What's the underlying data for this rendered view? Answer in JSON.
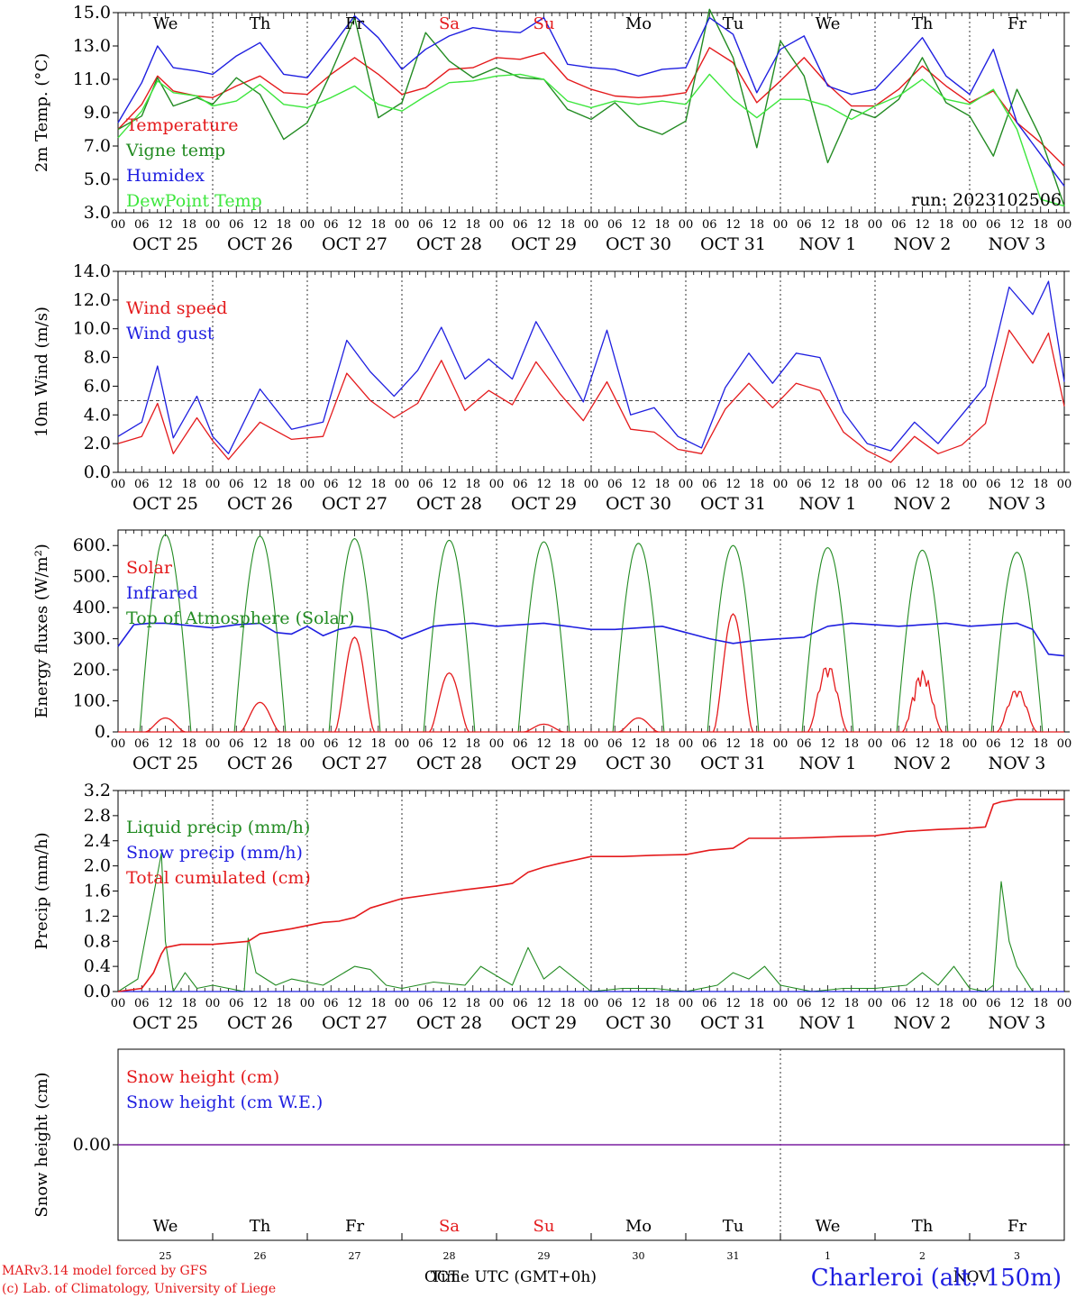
{
  "colors": {
    "red": "#e41a1c",
    "green": "#228b22",
    "blue": "#1f1fe0",
    "lightgreen": "#3de63d",
    "purple": "#7a1fa0"
  },
  "x_hour_labels": [
    "00",
    "06",
    "12",
    "18"
  ],
  "x_date_labels": [
    "OCT 25",
    "OCT 26",
    "OCT 27",
    "OCT 28",
    "OCT 29",
    "OCT 30",
    "OCT 31",
    "NOV 1",
    "NOV 2",
    "NOV 3"
  ],
  "weekdays": [
    "We",
    "Th",
    "Fr",
    "Sa",
    "Su",
    "Mo",
    "Tu",
    "We",
    "Th",
    "Fr"
  ],
  "weekend_days": [
    "Sa",
    "Su"
  ],
  "bottom_day_numbers": [
    "25",
    "26",
    "27",
    "28",
    "29",
    "30",
    "31",
    "1",
    "2",
    "3"
  ],
  "bottom_months": [
    "OCT",
    "NOV"
  ],
  "xaxis_title": "Time UTC (GMT+0h)",
  "footer": {
    "line1": "MARv3.14 model forced by GFS",
    "line2": "(c) Lab. of Climatology, University of Liege"
  },
  "station": "Charleroi (alt. 150m)",
  "run_label": "run: 2023102506",
  "chart_data": [
    {
      "type": "line",
      "ylabel": "2m Temp. (°C)",
      "ylim": [
        3.0,
        15.0
      ],
      "yticks": [
        "3.0",
        "5.0",
        "7.0",
        "9.0",
        "11.0",
        "13.0",
        "15.0"
      ],
      "x_unit": "hours since OCT 25 00 UTC",
      "series": [
        {
          "name": "Temperature",
          "color": "red",
          "x": [
            0,
            6,
            10,
            14,
            20,
            24,
            30,
            36,
            42,
            48,
            54,
            60,
            66,
            72,
            78,
            84,
            90,
            96,
            102,
            108,
            114,
            120,
            126,
            132,
            138,
            144,
            150,
            156,
            162,
            168,
            174,
            180,
            186,
            192,
            198,
            204,
            210,
            216,
            222,
            228,
            234,
            240
          ],
          "values": [
            8.0,
            9.5,
            11.2,
            10.3,
            10.0,
            9.9,
            10.6,
            11.2,
            10.2,
            10.1,
            11.3,
            12.3,
            11.3,
            10.1,
            10.5,
            11.6,
            11.7,
            12.3,
            12.2,
            12.6,
            11.0,
            10.4,
            10.0,
            9.9,
            10.0,
            10.2,
            12.9,
            12.0,
            9.6,
            10.9,
            12.3,
            10.7,
            9.4,
            9.4,
            10.4,
            11.8,
            10.6,
            9.6,
            10.3,
            8.4,
            7.2,
            5.8
          ]
        },
        {
          "name": "Vigne temp",
          "color": "green",
          "x": [
            0,
            6,
            10,
            14,
            20,
            24,
            30,
            36,
            42,
            48,
            54,
            60,
            66,
            72,
            78,
            84,
            90,
            96,
            102,
            108,
            114,
            120,
            126,
            132,
            138,
            144,
            150,
            156,
            162,
            168,
            174,
            180,
            186,
            192,
            198,
            204,
            210,
            216,
            222,
            228,
            234,
            240
          ],
          "values": [
            8.0,
            8.8,
            11.1,
            9.4,
            9.9,
            9.5,
            11.1,
            10.1,
            7.4,
            8.4,
            11.4,
            14.7,
            8.7,
            9.6,
            13.8,
            12.1,
            11.1,
            11.7,
            11.1,
            11.0,
            9.2,
            8.6,
            9.6,
            8.2,
            7.7,
            8.5,
            15.2,
            12.3,
            6.9,
            13.3,
            11.2,
            6.0,
            9.2,
            8.7,
            9.8,
            12.3,
            9.6,
            8.8,
            6.4,
            10.4,
            7.5,
            3.4
          ]
        },
        {
          "name": "Humidex",
          "color": "blue",
          "x": [
            0,
            6,
            10,
            14,
            20,
            24,
            30,
            36,
            42,
            48,
            54,
            60,
            66,
            72,
            78,
            84,
            90,
            96,
            102,
            108,
            114,
            120,
            126,
            132,
            138,
            144,
            150,
            156,
            162,
            168,
            174,
            180,
            186,
            192,
            198,
            204,
            210,
            216,
            222,
            228,
            234,
            240
          ],
          "values": [
            8.4,
            10.8,
            13.0,
            11.7,
            11.5,
            11.3,
            12.4,
            13.2,
            11.3,
            11.1,
            12.9,
            14.8,
            13.5,
            11.6,
            12.8,
            13.6,
            14.1,
            13.9,
            13.8,
            14.7,
            11.9,
            11.7,
            11.6,
            11.2,
            11.6,
            11.7,
            14.7,
            13.7,
            10.2,
            12.8,
            13.6,
            10.6,
            10.1,
            10.4,
            11.9,
            13.5,
            11.2,
            10.1,
            12.8,
            8.4,
            6.5,
            4.6
          ]
        },
        {
          "name": "DewPoint Temp",
          "color": "lightgreen",
          "x": [
            0,
            6,
            10,
            14,
            20,
            24,
            30,
            36,
            42,
            48,
            54,
            60,
            66,
            72,
            78,
            84,
            90,
            96,
            102,
            108,
            114,
            120,
            126,
            132,
            138,
            144,
            150,
            156,
            162,
            168,
            174,
            180,
            186,
            192,
            198,
            204,
            210,
            216,
            222,
            228,
            234,
            240
          ],
          "values": [
            7.5,
            9.1,
            10.9,
            10.2,
            10.0,
            9.4,
            9.7,
            10.7,
            9.5,
            9.3,
            9.9,
            10.6,
            9.5,
            9.1,
            10.0,
            10.8,
            10.9,
            11.2,
            11.3,
            11.0,
            9.7,
            9.3,
            9.7,
            9.5,
            9.7,
            9.5,
            11.3,
            9.8,
            8.7,
            9.8,
            9.8,
            9.4,
            8.6,
            9.4,
            10.0,
            11.0,
            9.8,
            9.5,
            10.4,
            8.0,
            3.8,
            3.4
          ]
        }
      ]
    },
    {
      "type": "line",
      "ylabel": "10m Wind (m/s)",
      "ylim": [
        0.0,
        14.0
      ],
      "yticks": [
        "0.0",
        "2.0",
        "4.0",
        "6.0",
        "8.0",
        "10.0",
        "12.0",
        "14.0"
      ],
      "reference_line": 5.0,
      "x_unit": "hours since OCT 25 00 UTC",
      "series": [
        {
          "name": "Wind speed",
          "color": "red",
          "x": [
            0,
            6,
            10,
            14,
            20,
            24,
            28,
            36,
            44,
            52,
            58,
            64,
            70,
            76,
            82,
            88,
            94,
            100,
            106,
            112,
            118,
            124,
            130,
            136,
            142,
            148,
            154,
            160,
            166,
            172,
            178,
            184,
            190,
            196,
            202,
            208,
            214,
            220,
            226,
            232,
            236,
            240
          ],
          "values": [
            2.0,
            2.5,
            4.8,
            1.3,
            3.8,
            2.2,
            0.9,
            3.5,
            2.3,
            2.5,
            6.9,
            5.0,
            3.8,
            4.8,
            7.8,
            4.3,
            5.7,
            4.7,
            7.7,
            5.5,
            3.6,
            6.3,
            3.0,
            2.8,
            1.6,
            1.3,
            4.4,
            6.2,
            4.5,
            6.2,
            5.7,
            2.8,
            1.5,
            0.7,
            2.5,
            1.3,
            1.9,
            3.4,
            9.9,
            7.6,
            9.7,
            4.6
          ]
        },
        {
          "name": "Wind gust",
          "color": "blue",
          "x": [
            0,
            6,
            10,
            14,
            20,
            24,
            28,
            36,
            44,
            52,
            58,
            64,
            70,
            76,
            82,
            88,
            94,
            100,
            106,
            112,
            118,
            124,
            130,
            136,
            142,
            148,
            154,
            160,
            166,
            172,
            178,
            184,
            190,
            196,
            202,
            208,
            214,
            220,
            226,
            232,
            236,
            240
          ],
          "values": [
            2.5,
            3.5,
            7.4,
            2.4,
            5.3,
            2.5,
            1.3,
            5.8,
            3.0,
            3.5,
            9.2,
            7.0,
            5.3,
            7.1,
            10.1,
            6.5,
            7.9,
            6.5,
            10.5,
            7.7,
            4.9,
            9.9,
            4.0,
            4.5,
            2.5,
            1.7,
            5.9,
            8.3,
            6.2,
            8.3,
            8.0,
            4.2,
            2.0,
            1.5,
            3.5,
            2.0,
            4.0,
            6.0,
            12.9,
            11.0,
            13.3,
            6.3
          ]
        }
      ]
    },
    {
      "type": "line",
      "ylabel": "Energy fluxes (W/m²)",
      "ylim": [
        0,
        650
      ],
      "yticks": [
        "0.",
        "100.",
        "200.",
        "300.",
        "400.",
        "500.",
        "600."
      ],
      "x_unit": "hours since OCT 25 00 UTC",
      "toa_peaks": [
        635,
        630,
        622,
        617,
        612,
        607,
        600,
        593,
        585,
        578
      ],
      "series": [
        {
          "name": "Solar",
          "color": "red",
          "day_peaks": [
            45,
            95,
            305,
            190,
            25,
            45,
            380,
            220,
            200,
            140
          ]
        },
        {
          "name": "Infrared",
          "color": "blue",
          "x": [
            0,
            4,
            8,
            12,
            16,
            20,
            24,
            30,
            36,
            40,
            44,
            48,
            52,
            56,
            60,
            64,
            68,
            72,
            76,
            80,
            84,
            90,
            96,
            102,
            108,
            114,
            120,
            126,
            132,
            138,
            144,
            150,
            156,
            162,
            168,
            174,
            180,
            186,
            192,
            198,
            204,
            210,
            216,
            222,
            228,
            232,
            236,
            240
          ],
          "values": [
            275,
            345,
            350,
            350,
            345,
            340,
            335,
            345,
            350,
            320,
            315,
            340,
            310,
            330,
            340,
            335,
            325,
            300,
            320,
            340,
            345,
            350,
            340,
            345,
            350,
            340,
            330,
            330,
            335,
            340,
            320,
            300,
            285,
            295,
            300,
            305,
            340,
            350,
            345,
            340,
            345,
            350,
            340,
            345,
            350,
            330,
            250,
            245
          ]
        },
        {
          "name": "Top of Atmosphere (Solar)",
          "color": "green"
        }
      ]
    },
    {
      "type": "line",
      "ylabel": "Precip (mm/h)",
      "ylim": [
        0.0,
        3.2
      ],
      "yticks": [
        "0.0",
        "0.4",
        "0.8",
        "1.2",
        "1.6",
        "2.0",
        "2.4",
        "2.8",
        "3.2"
      ],
      "x_unit": "hours since OCT 25 00 UTC",
      "series": [
        {
          "name": "Liquid precip (mm/h)",
          "color": "green",
          "x": [
            0,
            5,
            8,
            11,
            12,
            14,
            17,
            20,
            24,
            32,
            33,
            35,
            40,
            44,
            52,
            60,
            64,
            68,
            72,
            80,
            88,
            92,
            100,
            104,
            108,
            112,
            120,
            128,
            136,
            144,
            152,
            156,
            160,
            164,
            168,
            176,
            184,
            192,
            200,
            204,
            208,
            212,
            216,
            220,
            222,
            224,
            226,
            228,
            232,
            240
          ],
          "values": [
            0,
            0.2,
            1.2,
            2.2,
            0.8,
            0,
            0.3,
            0.05,
            0.1,
            0,
            0.85,
            0.3,
            0.1,
            0.2,
            0.1,
            0.4,
            0.35,
            0.1,
            0.05,
            0.15,
            0.1,
            0.4,
            0.1,
            0.7,
            0.2,
            0.4,
            0,
            0.05,
            0.05,
            0,
            0.1,
            0.3,
            0.2,
            0.4,
            0.1,
            0,
            0.05,
            0.05,
            0.1,
            0.3,
            0.1,
            0.4,
            0.05,
            0,
            0.1,
            1.75,
            0.8,
            0.4,
            0,
            0
          ]
        },
        {
          "name": "Snow precip (mm/h)",
          "color": "blue",
          "x": [
            0,
            240
          ],
          "values": [
            0,
            0
          ]
        },
        {
          "name": "Total cumulated (cm)",
          "color": "red",
          "x": [
            0,
            6,
            9,
            11,
            12,
            16,
            24,
            33,
            36,
            44,
            52,
            56,
            60,
            64,
            72,
            80,
            88,
            96,
            100,
            104,
            108,
            112,
            120,
            128,
            136,
            144,
            150,
            156,
            160,
            168,
            176,
            184,
            192,
            200,
            208,
            216,
            220,
            222,
            224,
            228,
            240
          ],
          "values": [
            0,
            0.05,
            0.3,
            0.6,
            0.7,
            0.75,
            0.75,
            0.8,
            0.92,
            1.0,
            1.1,
            1.12,
            1.18,
            1.33,
            1.48,
            1.55,
            1.62,
            1.68,
            1.72,
            1.9,
            1.98,
            2.04,
            2.15,
            2.15,
            2.17,
            2.18,
            2.25,
            2.28,
            2.44,
            2.44,
            2.45,
            2.47,
            2.48,
            2.55,
            2.58,
            2.6,
            2.62,
            2.98,
            3.02,
            3.06,
            3.06
          ]
        }
      ]
    },
    {
      "type": "line",
      "ylabel": "Snow height (cm)",
      "ylim": [
        -1,
        1
      ],
      "yticks": [
        "0.00"
      ],
      "series": [
        {
          "name": "Snow height (cm)",
          "color": "red",
          "x": [
            0,
            240
          ],
          "values": [
            0,
            0
          ]
        },
        {
          "name": "Snow height (cm W.E.)",
          "color": "blue",
          "x": [
            0,
            240
          ],
          "values": [
            0,
            0
          ]
        }
      ]
    }
  ]
}
